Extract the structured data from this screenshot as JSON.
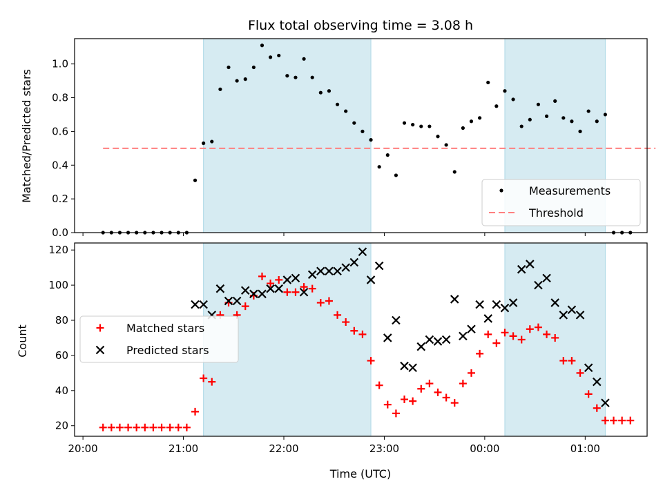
{
  "chart_data": [
    {
      "type": "scatter",
      "title": "Flux total observing time = 3.08 h",
      "xlabel": "",
      "ylabel": "Matched/Predicted stars",
      "ylim": [
        0,
        1.15
      ],
      "yticks": [
        "0.0",
        "0.2",
        "0.4",
        "0.6",
        "0.8",
        "1.0"
      ],
      "shaded_intervals": [
        [
          "21:12",
          "22:52"
        ],
        [
          "00:12",
          "01:12"
        ]
      ],
      "threshold": {
        "name": "Threshold",
        "value": 0.5,
        "x_range": [
          "20:12",
          "01:42"
        ],
        "color": "#ff7f7f"
      },
      "legend": {
        "position": "bottom-right",
        "entries": [
          "Measurements",
          "Threshold"
        ]
      },
      "series": [
        {
          "name": "Measurements",
          "marker": "dot",
          "color": "#000000",
          "x": [
            "20:12",
            "20:17",
            "20:22",
            "20:27",
            "20:32",
            "20:37",
            "20:42",
            "20:47",
            "20:52",
            "20:57",
            "21:02",
            "21:07",
            "21:12",
            "21:17",
            "21:22",
            "21:27",
            "21:32",
            "21:37",
            "21:42",
            "21:47",
            "21:52",
            "21:57",
            "22:02",
            "22:07",
            "22:12",
            "22:17",
            "22:22",
            "22:27",
            "22:32",
            "22:37",
            "22:42",
            "22:47",
            "22:52",
            "22:57",
            "23:02",
            "23:07",
            "23:12",
            "23:17",
            "23:22",
            "23:27",
            "23:32",
            "23:37",
            "23:42",
            "23:47",
            "23:52",
            "23:57",
            "00:02",
            "00:07",
            "00:12",
            "00:17",
            "00:22",
            "00:27",
            "00:32",
            "00:37",
            "00:42",
            "00:47",
            "00:52",
            "00:57",
            "01:02",
            "01:07",
            "01:12",
            "01:17",
            "01:22",
            "01:27"
          ],
          "y": [
            0,
            0,
            0,
            0,
            0,
            0,
            0,
            0,
            0,
            0,
            0,
            0.31,
            0.53,
            0.54,
            0.85,
            0.98,
            0.9,
            0.91,
            0.98,
            1.11,
            1.04,
            1.05,
            0.93,
            0.92,
            1.03,
            0.92,
            0.83,
            0.84,
            0.76,
            0.72,
            0.65,
            0.6,
            0.55,
            0.39,
            0.46,
            0.34,
            0.65,
            0.64,
            0.63,
            0.63,
            0.57,
            0.52,
            0.36,
            0.62,
            0.66,
            0.68,
            0.89,
            0.75,
            0.84,
            0.79,
            0.63,
            0.67,
            0.76,
            0.69,
            0.78,
            0.68,
            0.66,
            0.6,
            0.72,
            0.66,
            0.7,
            0,
            0,
            0
          ]
        }
      ]
    },
    {
      "type": "scatter",
      "title": "",
      "xlabel": "Time (UTC)",
      "ylabel": "Count",
      "ylim": [
        14,
        124
      ],
      "yticks": [
        "20",
        "40",
        "60",
        "80",
        "100",
        "120"
      ],
      "xticks": [
        "20:00",
        "21:00",
        "22:00",
        "23:00",
        "00:00",
        "01:00"
      ],
      "shaded_intervals": [
        [
          "21:12",
          "22:52"
        ],
        [
          "00:12",
          "01:12"
        ]
      ],
      "legend": {
        "position": "center-left",
        "entries": [
          "Matched stars",
          "Predicted stars"
        ]
      },
      "series": [
        {
          "name": "Matched stars",
          "marker": "plus",
          "color": "#ff0000",
          "x": [
            "20:12",
            "20:17",
            "20:22",
            "20:27",
            "20:32",
            "20:37",
            "20:42",
            "20:47",
            "20:52",
            "20:57",
            "21:02",
            "21:07",
            "21:12",
            "21:17",
            "21:22",
            "21:27",
            "21:32",
            "21:37",
            "21:42",
            "21:47",
            "21:52",
            "21:57",
            "22:02",
            "22:07",
            "22:12",
            "22:17",
            "22:22",
            "22:27",
            "22:32",
            "22:37",
            "22:42",
            "22:47",
            "22:52",
            "22:57",
            "23:02",
            "23:07",
            "23:12",
            "23:17",
            "23:22",
            "23:27",
            "23:32",
            "23:37",
            "23:42",
            "23:47",
            "23:52",
            "23:57",
            "00:02",
            "00:07",
            "00:12",
            "00:17",
            "00:22",
            "00:27",
            "00:32",
            "00:37",
            "00:42",
            "00:47",
            "00:52",
            "00:57",
            "01:02",
            "01:07",
            "01:12",
            "01:17",
            "01:22",
            "01:27"
          ],
          "y": [
            19,
            19,
            19,
            19,
            19,
            19,
            19,
            19,
            19,
            19,
            19,
            28,
            47,
            45,
            83,
            90,
            83,
            88,
            94,
            105,
            101,
            103,
            96,
            96,
            99,
            98,
            90,
            91,
            83,
            79,
            74,
            72,
            57,
            43,
            32,
            27,
            35,
            34,
            41,
            44,
            39,
            36,
            33,
            44,
            50,
            61,
            72,
            67,
            73,
            71,
            69,
            75,
            76,
            72,
            70,
            57,
            57,
            50,
            38,
            30,
            23,
            23,
            23,
            23
          ]
        },
        {
          "name": "Predicted stars",
          "marker": "x",
          "color": "#000000",
          "x": [
            "21:07",
            "21:12",
            "21:17",
            "21:22",
            "21:27",
            "21:32",
            "21:37",
            "21:42",
            "21:47",
            "21:52",
            "21:57",
            "22:02",
            "22:07",
            "22:12",
            "22:17",
            "22:22",
            "22:27",
            "22:32",
            "22:37",
            "22:42",
            "22:47",
            "22:52",
            "22:57",
            "23:02",
            "23:07",
            "23:12",
            "23:17",
            "23:22",
            "23:27",
            "23:32",
            "23:37",
            "23:42",
            "23:47",
            "23:52",
            "23:57",
            "00:02",
            "00:07",
            "00:12",
            "00:17",
            "00:22",
            "00:27",
            "00:32",
            "00:37",
            "00:42",
            "00:47",
            "00:52",
            "00:57",
            "01:02",
            "01:07",
            "01:12"
          ],
          "y": [
            89,
            89,
            83,
            98,
            91,
            91,
            97,
            95,
            95,
            98,
            98,
            103,
            104,
            96,
            106,
            108,
            108,
            108,
            110,
            113,
            119,
            103,
            111,
            70,
            80,
            54,
            53,
            65,
            69,
            68,
            69,
            92,
            71,
            75,
            89,
            81,
            89,
            87,
            90,
            109,
            112,
            100,
            104,
            90,
            83,
            86,
            83,
            53,
            45,
            33
          ]
        }
      ]
    }
  ]
}
